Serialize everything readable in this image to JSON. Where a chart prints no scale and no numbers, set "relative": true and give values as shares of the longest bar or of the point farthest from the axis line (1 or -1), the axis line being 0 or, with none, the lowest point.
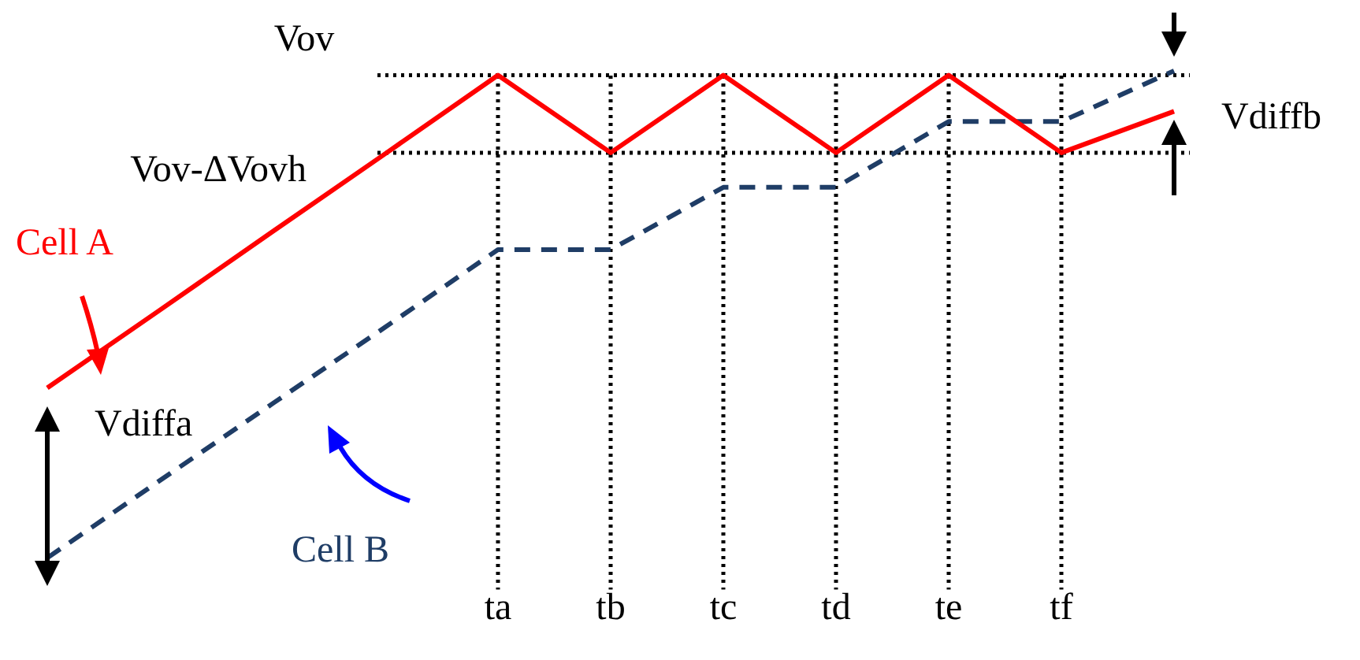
{
  "chart_data": {
    "type": "line",
    "relative": true,
    "categories": [
      null,
      null,
      null,
      null,
      "ta",
      "tb",
      "tc",
      "td",
      "te",
      "tf",
      null
    ],
    "series": [
      {
        "name": "Cell A",
        "color": "#ff0000",
        "line_style": "solid",
        "values": [
          0.349,
          0.509,
          0.67,
          0.83,
          0.991,
          0.832,
          0.991,
          0.832,
          0.991,
          0.832,
          0.917
        ]
      },
      {
        "name": "Cell B",
        "color": "#1f3d66",
        "line_style": "dashed",
        "values": [
          0,
          0.159,
          0.317,
          0.474,
          0.633,
          0.633,
          0.761,
          0.761,
          0.896,
          0.896,
          1
        ]
      }
    ],
    "ref_lines": [
      {
        "axis": "y",
        "value": 0.991,
        "label": "Vov",
        "line_style": "dotted",
        "color": "#000000"
      },
      {
        "axis": "y",
        "value": 0.832,
        "label": "Vov-ΔVovh",
        "line_style": "dotted",
        "color": "#000000"
      },
      {
        "axis": "x",
        "value": "ta",
        "line_style": "dotted",
        "color": "#000000"
      },
      {
        "axis": "x",
        "value": "tb",
        "line_style": "dotted",
        "color": "#000000"
      },
      {
        "axis": "x",
        "value": "tc",
        "line_style": "dotted",
        "color": "#000000"
      },
      {
        "axis": "x",
        "value": "td",
        "line_style": "dotted",
        "color": "#000000"
      },
      {
        "axis": "x",
        "value": "te",
        "line_style": "dotted",
        "color": "#000000"
      },
      {
        "axis": "x",
        "value": "tf",
        "line_style": "dotted",
        "color": "#000000"
      }
    ],
    "annotations": [
      "Vdiffa",
      "Vdiffb"
    ],
    "tick_labels": "x",
    "grid": false,
    "legend": false,
    "marker": "none"
  }
}
